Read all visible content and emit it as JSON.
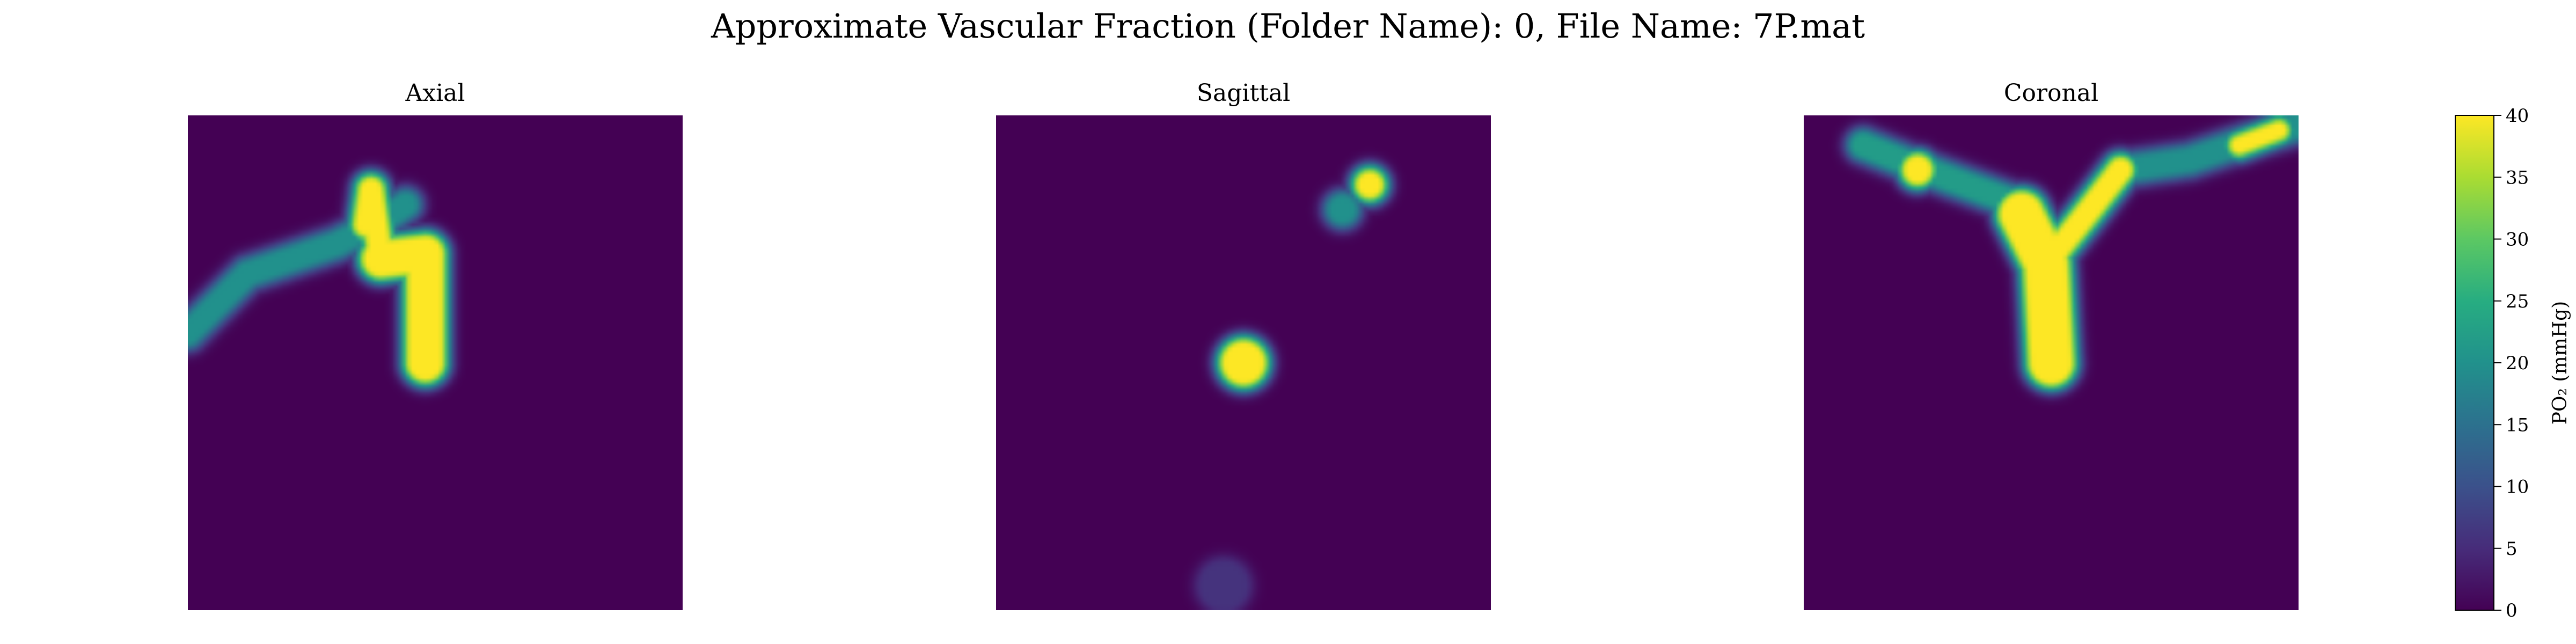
{
  "chart_data": {
    "type": "heatmap",
    "title": "Approximate Vascular Fraction (Folder Name): 0, File Name: 7P.mat",
    "panels": [
      {
        "title": "Axial",
        "axes": "off",
        "vessels": [
          {
            "shape": "line",
            "points": [
              [
                0.39,
                0.29
              ],
              [
                0.48,
                0.28
              ],
              [
                0.48,
                0.5
              ]
            ],
            "width": 0.055,
            "peak": 40
          },
          {
            "shape": "line",
            "points": [
              [
                0.36,
                0.22
              ],
              [
                0.37,
                0.15
              ],
              [
                0.39,
                0.29
              ]
            ],
            "width": 0.03,
            "peak": 40
          },
          {
            "shape": "line",
            "points": [
              [
                0.0,
                0.44
              ],
              [
                0.12,
                0.32
              ],
              [
                0.3,
                0.26
              ],
              [
                0.38,
                0.22
              ],
              [
                0.44,
                0.18
              ]
            ],
            "width": 0.03,
            "peak": 20
          }
        ]
      },
      {
        "title": "Sagittal",
        "axes": "off",
        "vessels": [
          {
            "shape": "disk",
            "center": [
              0.5,
              0.5
            ],
            "radius": 0.035,
            "peak": 40
          },
          {
            "shape": "disk",
            "center": [
              0.755,
              0.14
            ],
            "radius": 0.018,
            "peak": 40
          },
          {
            "shape": "disk",
            "center": [
              0.7,
              0.19
            ],
            "radius": 0.02,
            "peak": 20
          },
          {
            "shape": "disk",
            "center": [
              0.46,
              0.95
            ],
            "radius": 0.04,
            "peak": 6
          }
        ]
      },
      {
        "title": "Coronal",
        "axes": "off",
        "vessels": [
          {
            "shape": "line",
            "points": [
              [
                0.5,
                0.5
              ],
              [
                0.49,
                0.3
              ],
              [
                0.44,
                0.2
              ]
            ],
            "width": 0.07,
            "peak": 40
          },
          {
            "shape": "line",
            "points": [
              [
                0.49,
                0.3
              ],
              [
                0.57,
                0.2
              ],
              [
                0.64,
                0.11
              ]
            ],
            "width": 0.03,
            "peak": 40
          },
          {
            "shape": "line",
            "points": [
              [
                0.41,
                0.17
              ],
              [
                0.3,
                0.13
              ],
              [
                0.22,
                0.1
              ],
              [
                0.12,
                0.06
              ]
            ],
            "width": 0.03,
            "peak": 22
          },
          {
            "shape": "line",
            "points": [
              [
                0.64,
                0.11
              ],
              [
                0.78,
                0.09
              ],
              [
                0.9,
                0.05
              ],
              [
                1.0,
                0.02
              ]
            ],
            "width": 0.03,
            "peak": 20
          },
          {
            "shape": "line",
            "points": [
              [
                0.88,
                0.06
              ],
              [
                0.96,
                0.03
              ]
            ],
            "width": 0.018,
            "peak": 40
          },
          {
            "shape": "disk",
            "center": [
              0.23,
              0.11
            ],
            "radius": 0.02,
            "peak": 40
          }
        ]
      }
    ],
    "colorbar": {
      "label": "PO₂ (mmHg)",
      "min": 0,
      "max": 40,
      "ticks": [
        0,
        5,
        10,
        15,
        20,
        25,
        30,
        35,
        40
      ]
    },
    "colormap": "viridis",
    "colormap_stops": [
      "#440154",
      "#472c7a",
      "#3b518b",
      "#2c718e",
      "#21918c",
      "#27ad81",
      "#5cc863",
      "#aadc32",
      "#fde725"
    ]
  }
}
